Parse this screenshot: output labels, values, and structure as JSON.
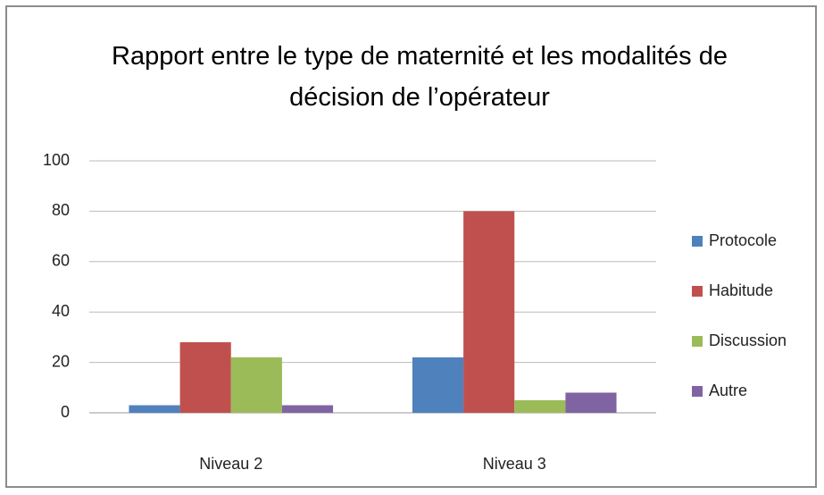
{
  "chart_data": {
    "type": "bar",
    "title": "Rapport entre le type de maternité et les modalités de décision de l’opérateur",
    "categories": [
      "Niveau 2",
      "Niveau 3"
    ],
    "series": [
      {
        "name": "Protocole",
        "color": "#4f81bd",
        "values": [
          3,
          22
        ]
      },
      {
        "name": "Habitude",
        "color": "#c0504d",
        "values": [
          28,
          80
        ]
      },
      {
        "name": "Discussion",
        "color": "#9bbb59",
        "values": [
          22,
          5
        ]
      },
      {
        "name": "Autre",
        "color": "#8064a2",
        "values": [
          3,
          8
        ]
      }
    ],
    "ylim": [
      0,
      100
    ],
    "yticks": [
      0,
      20,
      40,
      60,
      80,
      100
    ],
    "grid": true,
    "legend": "right"
  }
}
